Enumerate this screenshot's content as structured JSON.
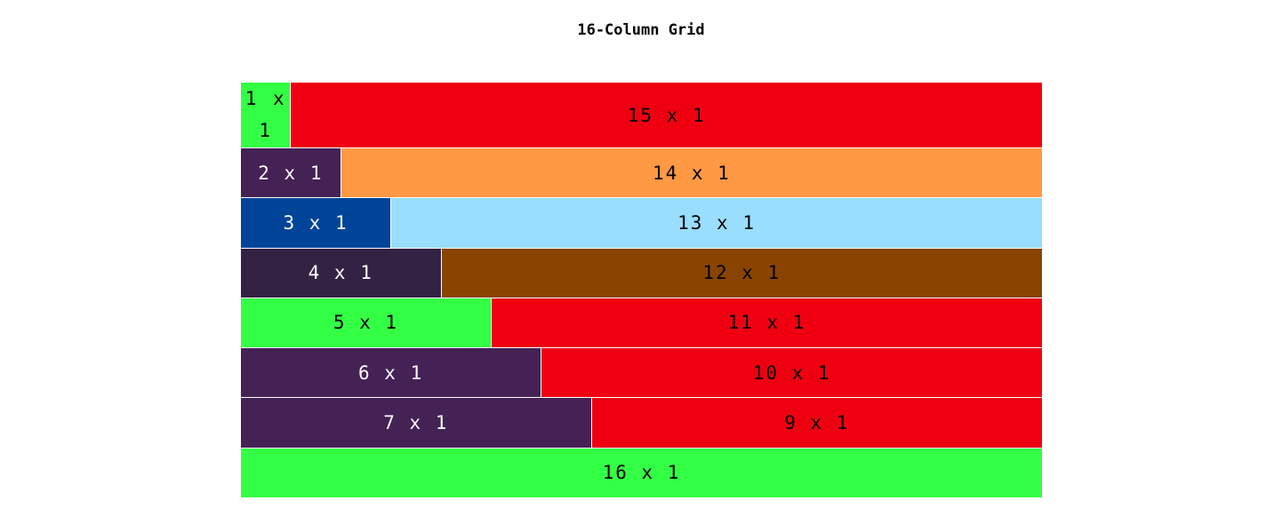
{
  "title": "16-Column Grid",
  "colors": {
    "green": "#33ff44",
    "red": "#ee0011",
    "purple": "#442255",
    "orange": "#ff9944",
    "blue": "#004499",
    "light_blue": "#99ddff",
    "dark_purple": "#332244",
    "brown": "#884400"
  },
  "rows": [
    [
      {
        "label": "1 x 1",
        "span": 1,
        "color": "#33ff44",
        "text_color": "#000000"
      },
      {
        "label": "15 x 1",
        "span": 15,
        "color": "#ee0011",
        "text_color": "#000000"
      }
    ],
    [
      {
        "label": "2 x 1",
        "span": 2,
        "color": "#442255",
        "text_color": "#ffffff"
      },
      {
        "label": "14 x 1",
        "span": 14,
        "color": "#ff9944",
        "text_color": "#000000"
      }
    ],
    [
      {
        "label": "3 x 1",
        "span": 3,
        "color": "#004499",
        "text_color": "#ffffff"
      },
      {
        "label": "13 x 1",
        "span": 13,
        "color": "#99ddff",
        "text_color": "#000000"
      }
    ],
    [
      {
        "label": "4 x 1",
        "span": 4,
        "color": "#332244",
        "text_color": "#ffffff"
      },
      {
        "label": "12 x 1",
        "span": 12,
        "color": "#884400",
        "text_color": "#000000"
      }
    ],
    [
      {
        "label": "5 x 1",
        "span": 5,
        "color": "#33ff44",
        "text_color": "#000000"
      },
      {
        "label": "11 x 1",
        "span": 11,
        "color": "#ee0011",
        "text_color": "#000000"
      }
    ],
    [
      {
        "label": "6 x 1",
        "span": 6,
        "color": "#442255",
        "text_color": "#ffffff"
      },
      {
        "label": "10 x 1",
        "span": 10,
        "color": "#ee0011",
        "text_color": "#000000"
      }
    ],
    [
      {
        "label": "7 x 1",
        "span": 7,
        "color": "#442255",
        "text_color": "#ffffff"
      },
      {
        "label": "9 x 1",
        "span": 9,
        "color": "#ee0011",
        "text_color": "#000000"
      }
    ],
    [
      {
        "label": "16 x 1",
        "span": 16,
        "color": "#33ff44",
        "text_color": "#000000"
      }
    ]
  ]
}
